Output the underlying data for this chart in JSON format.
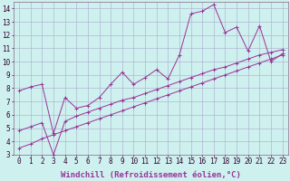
{
  "background_color": "#cef0ee",
  "grid_color": "#aaaacc",
  "line_color": "#993399",
  "xlim": [
    -0.5,
    23.5
  ],
  "ylim": [
    3,
    14.5
  ],
  "yticks": [
    3,
    4,
    5,
    6,
    7,
    8,
    9,
    10,
    11,
    12,
    13,
    14
  ],
  "xticks": [
    0,
    1,
    2,
    3,
    4,
    5,
    6,
    7,
    8,
    9,
    10,
    11,
    12,
    13,
    14,
    15,
    16,
    17,
    18,
    19,
    20,
    21,
    22,
    23
  ],
  "xlabel": "Windchill (Refroidissement éolien,°C)",
  "series": [
    {
      "x": [
        0,
        1,
        2,
        3,
        4,
        5,
        6,
        7,
        8,
        9,
        10,
        11,
        12,
        13,
        14,
        15,
        16,
        17,
        18,
        19,
        20,
        21,
        22,
        23
      ],
      "y": [
        7.8,
        8.1,
        8.3,
        4.6,
        7.3,
        6.5,
        6.7,
        7.3,
        8.3,
        9.2,
        8.3,
        8.8,
        9.4,
        8.7,
        10.5,
        13.6,
        13.8,
        14.3,
        12.2,
        12.6,
        10.8,
        12.7,
        10.0,
        10.6
      ]
    },
    {
      "x": [
        0,
        1,
        2,
        3,
        4,
        5,
        6,
        7,
        8,
        9,
        10,
        11,
        12,
        13,
        14,
        15,
        16,
        17,
        18,
        19,
        20,
        21,
        22,
        23
      ],
      "y": [
        4.8,
        5.1,
        5.4,
        3.0,
        5.5,
        5.9,
        6.2,
        6.5,
        6.8,
        7.1,
        7.3,
        7.6,
        7.9,
        8.2,
        8.5,
        8.8,
        9.1,
        9.4,
        9.6,
        9.9,
        10.2,
        10.5,
        10.7,
        10.9
      ]
    },
    {
      "x": [
        0,
        1,
        2,
        3,
        4,
        5,
        6,
        7,
        8,
        9,
        10,
        11,
        12,
        13,
        14,
        15,
        16,
        17,
        18,
        19,
        20,
        21,
        22,
        23
      ],
      "y": [
        3.5,
        3.8,
        4.2,
        4.5,
        4.8,
        5.1,
        5.4,
        5.7,
        6.0,
        6.3,
        6.6,
        6.9,
        7.2,
        7.5,
        7.8,
        8.1,
        8.4,
        8.7,
        9.0,
        9.3,
        9.6,
        9.9,
        10.2,
        10.5
      ]
    }
  ],
  "tick_fontsize": 5.5,
  "xlabel_fontsize": 6.5,
  "xlabel_color": "#993399"
}
